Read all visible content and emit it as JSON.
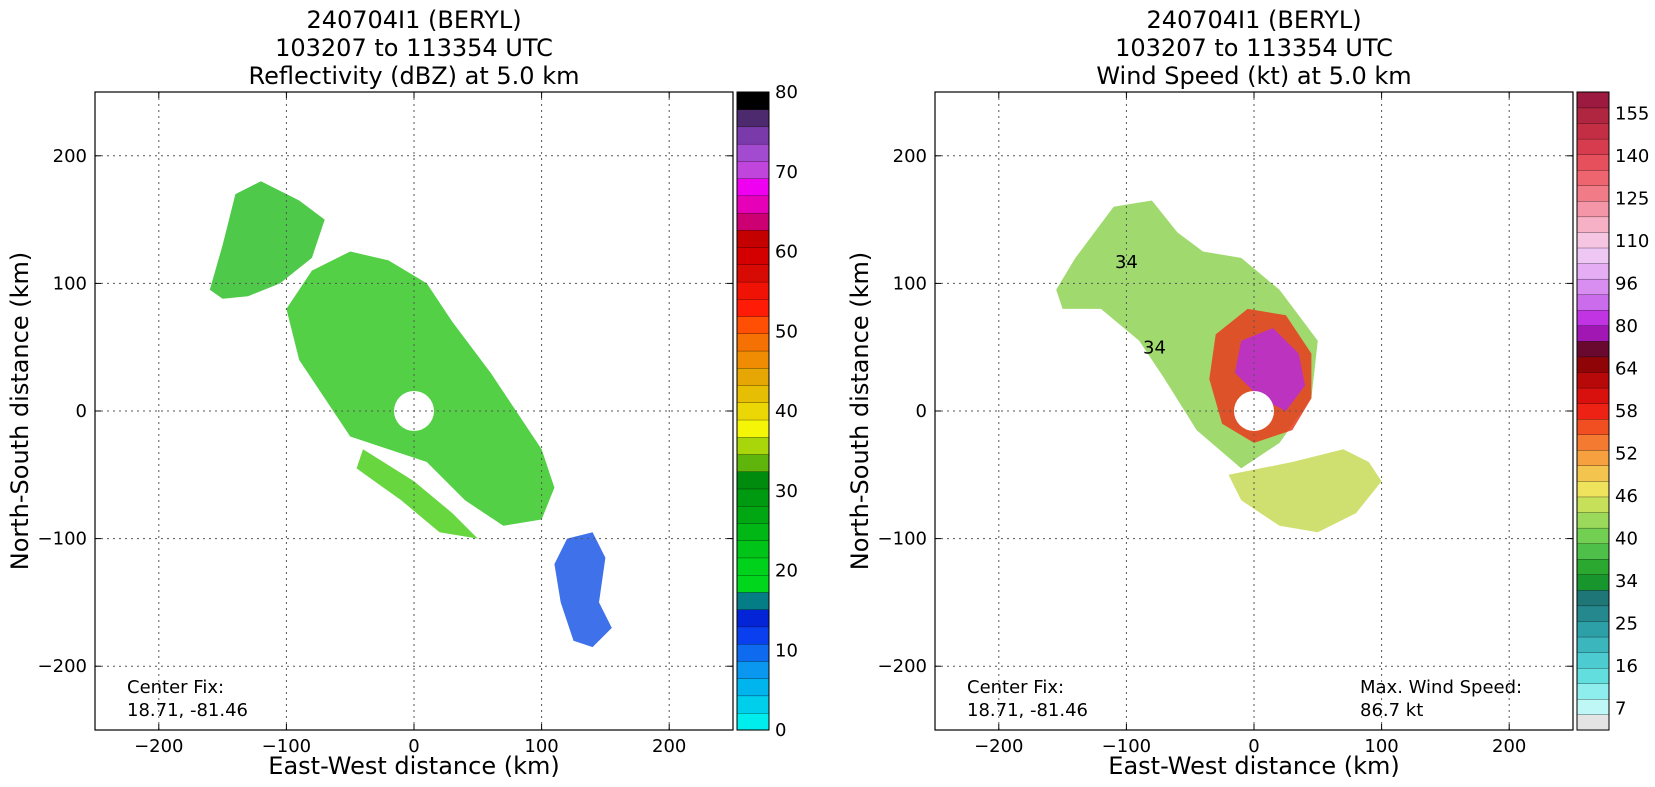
{
  "chart_data": [
    {
      "type": "heatmap",
      "title_lines": [
        "240704I1 (BERYL)",
        "103207 to 113354 UTC",
        "Reflectivity (dBZ) at 5.0 km"
      ],
      "xlabel": "East-West distance (km)",
      "ylabel": "North-South distance (km)",
      "xlim": [
        -250,
        250
      ],
      "ylim": [
        -250,
        250
      ],
      "xticks": [
        -200,
        -100,
        0,
        100,
        200
      ],
      "yticks": [
        -200,
        -100,
        0,
        100,
        200
      ],
      "grid": true,
      "note_lines": [
        "Center Fix:",
        "18.71, -81.46"
      ],
      "colorbar": {
        "range": [
          0,
          80
        ],
        "ticks": [
          0,
          10,
          20,
          30,
          40,
          50,
          60,
          70,
          80
        ],
        "colors": [
          "#00eded",
          "#00cfec",
          "#00b4ee",
          "#0a97ef",
          "#0e6bef",
          "#0a3ff0",
          "#0425d7",
          "#047d86",
          "#00d71c",
          "#00d11a",
          "#00c418",
          "#00b716",
          "#00a713",
          "#009a11",
          "#008a0e",
          "#5fb50c",
          "#a9d60a",
          "#f5f508",
          "#ecd706",
          "#e6be04",
          "#e6a604",
          "#ef8c04",
          "#f57104",
          "#ff4f05",
          "#ff1b05",
          "#f01205",
          "#d80a04",
          "#d40000",
          "#c40000",
          "#cc0073",
          "#e600b8",
          "#f000f0",
          "#c045dd",
          "#a24bd0",
          "#7a3aaa",
          "#4d2a6e",
          "#000000"
        ]
      },
      "echo_bands": [
        {
          "name": "northwest-rainband",
          "points": [
            [
              -160,
              95
            ],
            [
              -150,
              130
            ],
            [
              -140,
              170
            ],
            [
              -120,
              180
            ],
            [
              -90,
              165
            ],
            [
              -70,
              150
            ],
            [
              -80,
              120
            ],
            [
              -105,
              100
            ],
            [
              -130,
              90
            ],
            [
              -150,
              88
            ]
          ]
        },
        {
          "name": "main-eyewall-region",
          "points": [
            [
              -100,
              80
            ],
            [
              -80,
              110
            ],
            [
              -50,
              125
            ],
            [
              -20,
              118
            ],
            [
              10,
              100
            ],
            [
              30,
              70
            ],
            [
              60,
              30
            ],
            [
              80,
              0
            ],
            [
              100,
              -30
            ],
            [
              110,
              -60
            ],
            [
              100,
              -85
            ],
            [
              70,
              -90
            ],
            [
              40,
              -70
            ],
            [
              10,
              -40
            ],
            [
              -20,
              -30
            ],
            [
              -50,
              -20
            ],
            [
              -70,
              10
            ],
            [
              -90,
              40
            ]
          ]
        },
        {
          "name": "southeast-fragments",
          "points": [
            [
              120,
              -100
            ],
            [
              140,
              -95
            ],
            [
              150,
              -115
            ],
            [
              145,
              -150
            ],
            [
              155,
              -170
            ],
            [
              140,
              -185
            ],
            [
              125,
              -180
            ],
            [
              115,
              -150
            ],
            [
              110,
              -120
            ]
          ]
        },
        {
          "name": "southern-arc",
          "points": [
            [
              -40,
              -30
            ],
            [
              0,
              -55
            ],
            [
              30,
              -80
            ],
            [
              50,
              -100
            ],
            [
              20,
              -95
            ],
            [
              -10,
              -70
            ],
            [
              -45,
              -45
            ]
          ]
        }
      ]
    },
    {
      "type": "heatmap",
      "title_lines": [
        "240704I1 (BERYL)",
        "103207 to 113354 UTC",
        "Wind Speed (kt) at 5.0 km"
      ],
      "xlabel": "East-West distance (km)",
      "ylabel": "North-South distance (km)",
      "xlim": [
        -250,
        250
      ],
      "ylim": [
        -250,
        250
      ],
      "xticks": [
        -200,
        -100,
        0,
        100,
        200
      ],
      "yticks": [
        -200,
        -100,
        0,
        100,
        200
      ],
      "grid": true,
      "note_lines": [
        "Center Fix:",
        "18.71, -81.46"
      ],
      "max_wind_lines": [
        "Max. Wind Speed:",
        "86.7 kt"
      ],
      "contour_labels": [
        {
          "text": "34",
          "x": -100,
          "y": 112
        },
        {
          "text": "34",
          "x": -78,
          "y": 45
        }
      ],
      "colorbar": {
        "range": [
          0,
          160
        ],
        "tick_labels": [
          "7",
          "16",
          "25",
          "34",
          "40",
          "46",
          "52",
          "58",
          "64",
          "80",
          "96",
          "110",
          "125",
          "140",
          "155"
        ],
        "colors": [
          "#e4e4e4",
          "#bff6f6",
          "#8eeded",
          "#62dede",
          "#4ccbd0",
          "#3bb6bd",
          "#2da0a7",
          "#25888e",
          "#1f7676",
          "#18962d",
          "#2ba830",
          "#4ec04a",
          "#72cf52",
          "#9bd95a",
          "#c6e05a",
          "#efe25c",
          "#f3c54e",
          "#f7a040",
          "#f57a31",
          "#f14e21",
          "#ee2115",
          "#d9110e",
          "#b8090a",
          "#8f0406",
          "#6a0930",
          "#a017b4",
          "#c034e4",
          "#cb6cec",
          "#d88ef0",
          "#e5adf4",
          "#eec7f5",
          "#f6c5e1",
          "#f6b1c6",
          "#f496a8",
          "#f17c87",
          "#ee6570",
          "#e6505d",
          "#d73c4e",
          "#c42e44",
          "#b02640",
          "#9c1a3f"
        ]
      },
      "wind_bands": [
        {
          "name": "outer-green",
          "points": [
            [
              -155,
              95
            ],
            [
              -140,
              120
            ],
            [
              -110,
              160
            ],
            [
              -80,
              165
            ],
            [
              -60,
              140
            ],
            [
              -40,
              125
            ],
            [
              -10,
              120
            ],
            [
              20,
              95
            ],
            [
              50,
              55
            ],
            [
              45,
              10
            ],
            [
              20,
              -25
            ],
            [
              -10,
              -45
            ],
            [
              -45,
              -15
            ],
            [
              -70,
              25
            ],
            [
              -90,
              55
            ],
            [
              -120,
              80
            ],
            [
              -150,
              80
            ]
          ]
        },
        {
          "name": "red-core",
          "points": [
            [
              -30,
              60
            ],
            [
              -5,
              80
            ],
            [
              25,
              75
            ],
            [
              45,
              45
            ],
            [
              45,
              10
            ],
            [
              30,
              -15
            ],
            [
              0,
              -25
            ],
            [
              -25,
              -10
            ],
            [
              -35,
              25
            ]
          ]
        },
        {
          "name": "purple-max",
          "points": [
            [
              -10,
              55
            ],
            [
              15,
              65
            ],
            [
              35,
              45
            ],
            [
              40,
              20
            ],
            [
              25,
              0
            ],
            [
              5,
              10
            ],
            [
              -15,
              30
            ]
          ]
        },
        {
          "name": "southeast-band",
          "points": [
            [
              -20,
              -50
            ],
            [
              30,
              -40
            ],
            [
              70,
              -30
            ],
            [
              90,
              -40
            ],
            [
              100,
              -55
            ],
            [
              80,
              -80
            ],
            [
              50,
              -95
            ],
            [
              20,
              -90
            ],
            [
              -10,
              -70
            ]
          ]
        }
      ]
    }
  ]
}
